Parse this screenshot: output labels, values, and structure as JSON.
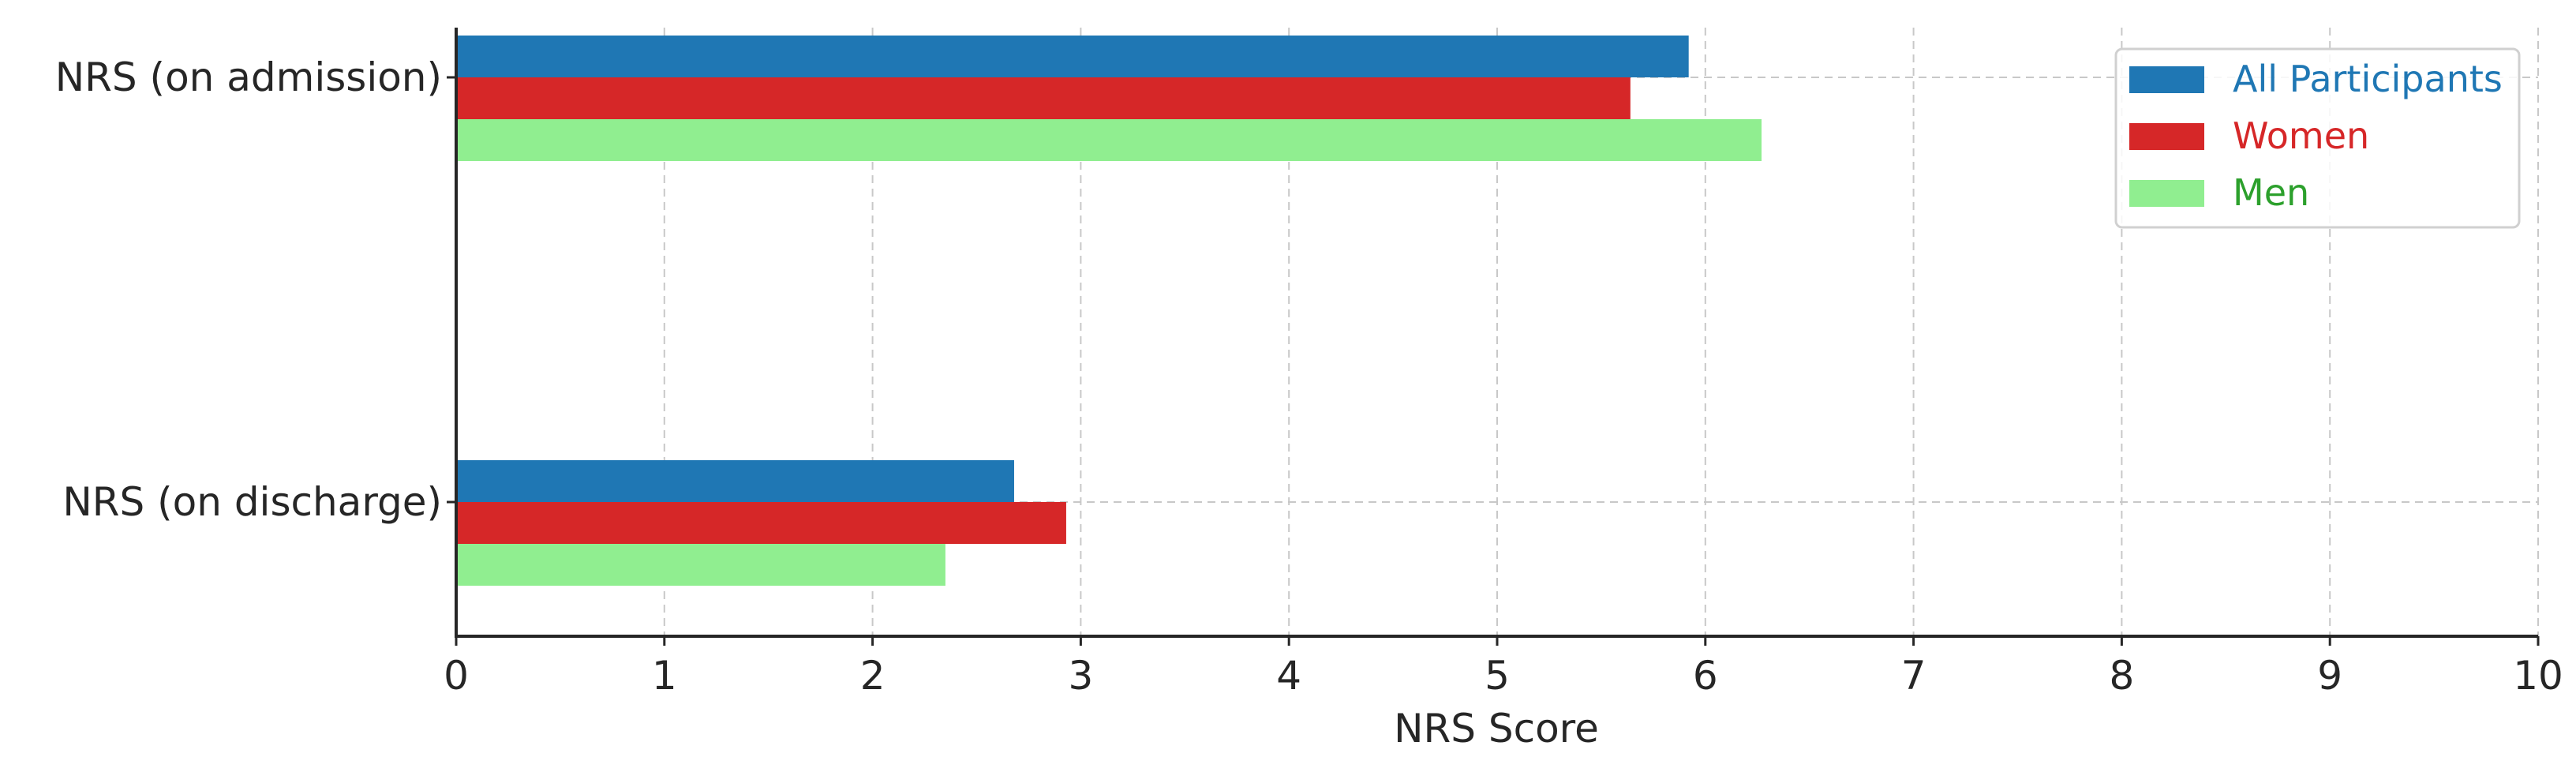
{
  "chart_data": {
    "type": "bar",
    "orientation": "horizontal",
    "categories": [
      "NRS (on admission)",
      "NRS (on discharge)"
    ],
    "series": [
      {
        "name": "All Participants",
        "values": [
          5.92,
          2.68
        ],
        "color": "#1f77b4"
      },
      {
        "name": "Women",
        "values": [
          5.64,
          2.93
        ],
        "color": "#d62728"
      },
      {
        "name": "Men",
        "values": [
          6.27,
          2.35
        ],
        "color": "#90ee90"
      }
    ],
    "legend_text_colors": [
      "#1f77b4",
      "#d62728",
      "#2ca02c"
    ],
    "title": "",
    "xlabel": "NRS Score",
    "ylabel": "",
    "xlim": [
      0,
      10
    ],
    "xticks": [
      "0",
      "1",
      "2",
      "3",
      "4",
      "5",
      "6",
      "7",
      "8",
      "9",
      "10"
    ],
    "grid": true,
    "legend_position": "top-right"
  }
}
